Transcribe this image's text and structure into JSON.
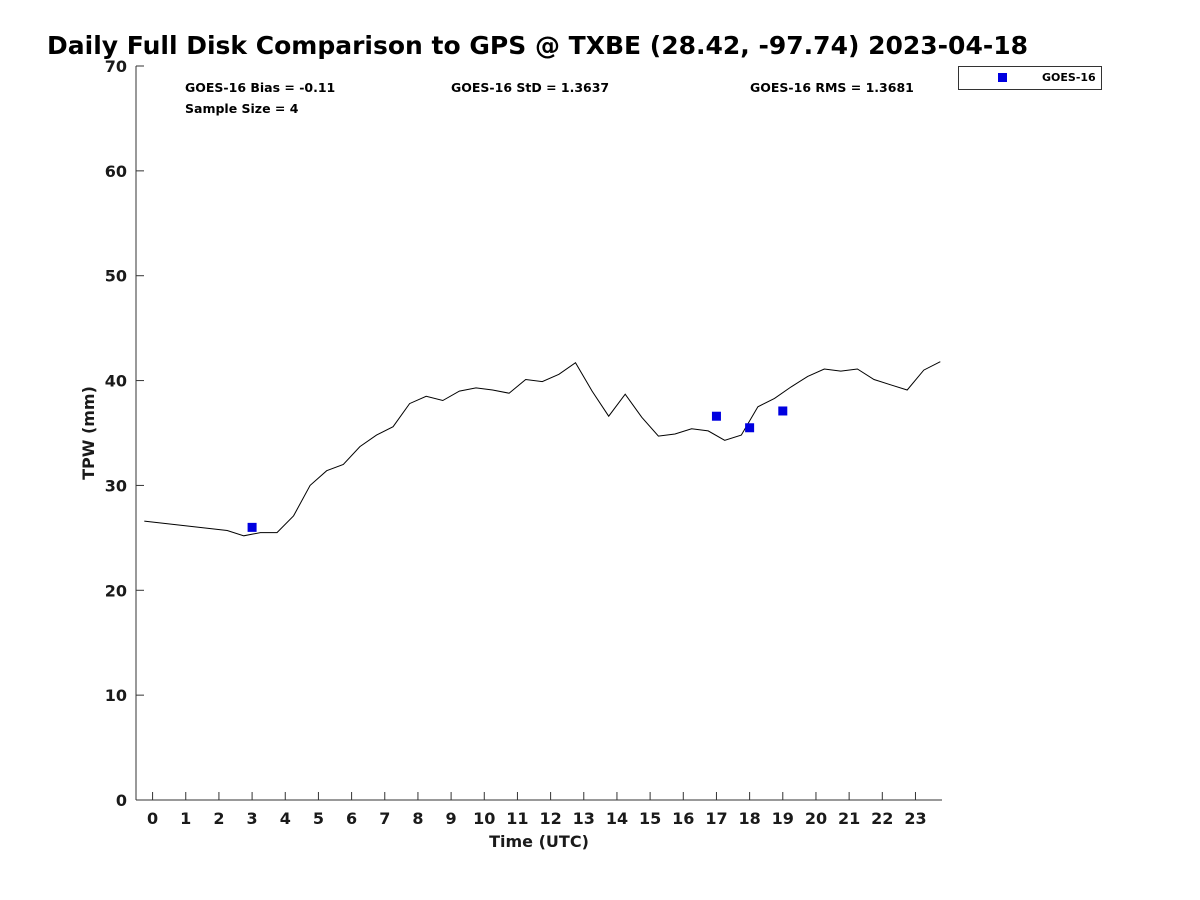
{
  "chart_data": {
    "type": "scatter",
    "title": "Daily Full Disk Comparison to GPS @ TXBE (28.42, -97.74) 2023-04-18",
    "xlabel": "Time (UTC)",
    "ylabel": "TPW (mm)",
    "xlim": [
      -0.5,
      23.8
    ],
    "ylim": [
      0,
      70
    ],
    "x_ticks": [
      0,
      1,
      2,
      3,
      4,
      5,
      6,
      7,
      8,
      9,
      10,
      11,
      12,
      13,
      14,
      15,
      16,
      17,
      18,
      19,
      20,
      21,
      22,
      23
    ],
    "y_ticks": [
      0,
      10,
      20,
      30,
      40,
      50,
      60,
      70
    ],
    "grid": false,
    "legend": {
      "position": "top-right",
      "entries": [
        "GOES-16"
      ]
    },
    "stats": {
      "bias": "GOES-16 Bias = -0.11",
      "std": "GOES-16 StD = 1.3637",
      "rms": "GOES-16 RMS = 1.3681",
      "sample_size": "Sample Size = 4"
    },
    "gps_line": {
      "color": "#000000",
      "x": [
        -0.25,
        2.25,
        2.75,
        3.25,
        3.75,
        4.25,
        4.75,
        5.25,
        5.75,
        6.25,
        6.75,
        7.25,
        7.75,
        8.25,
        8.75,
        9.25,
        9.75,
        10.25,
        10.75,
        11.25,
        11.75,
        12.25,
        12.75,
        13.25,
        13.75,
        14.25,
        14.75,
        15.25,
        15.75,
        16.25,
        16.75,
        17.25,
        17.75,
        18.25,
        18.75,
        19.25,
        19.75,
        20.25,
        20.75,
        21.25,
        21.75,
        22.25,
        22.75,
        23.25,
        23.75
      ],
      "y": [
        26.6,
        25.7,
        25.2,
        25.5,
        25.5,
        27.1,
        30.0,
        31.4,
        32.0,
        33.7,
        34.8,
        35.6,
        37.8,
        38.5,
        38.1,
        39.0,
        39.3,
        39.1,
        38.8,
        40.1,
        39.9,
        40.6,
        41.7,
        39.0,
        36.6,
        38.7,
        36.5,
        34.7,
        34.9,
        35.4,
        35.2,
        34.3,
        34.8,
        37.5,
        38.3,
        39.4,
        40.4,
        41.1,
        40.9,
        41.1,
        40.1,
        39.6,
        39.1,
        41.0,
        41.8
      ]
    },
    "series": [
      {
        "name": "GOES-16",
        "color": "#0000e0",
        "marker": "square",
        "x": [
          3,
          17,
          18,
          19
        ],
        "y": [
          26.0,
          36.6,
          35.5,
          37.1
        ]
      }
    ]
  }
}
